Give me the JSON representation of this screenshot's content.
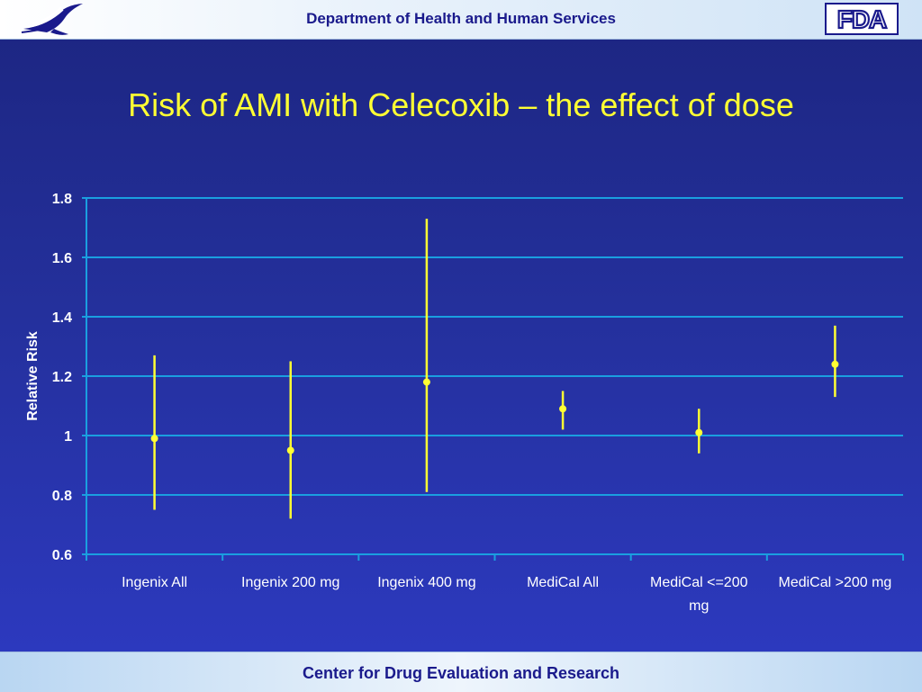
{
  "header": {
    "department": "Department of Health and Human Services",
    "hhs_logo_icon": "hhs-eagle-icon",
    "fda_logo_text": "FDA"
  },
  "slide": {
    "title": "Risk of AMI with Celecoxib – the effect of dose"
  },
  "footer": {
    "center": "Center for Drug Evaluation and Research"
  },
  "colors": {
    "background": "#2430a0",
    "accent": "#ffff33",
    "gridline": "#1a9fe0",
    "header_text": "#1a1a8c"
  },
  "chart_data": {
    "type": "scatter",
    "subtype": "point-estimate with confidence intervals",
    "ylabel": "Relative Risk",
    "xlabel": "",
    "ylim": [
      0.6,
      1.8
    ],
    "yticks": [
      "0.6",
      "0.8",
      "1",
      "1.2",
      "1.4",
      "1.6",
      "1.8"
    ],
    "grid": true,
    "categories": [
      "Ingenix All",
      "Ingenix 200 mg",
      "Ingenix 400 mg",
      "MediCal All",
      "MediCal <=200 mg",
      "MediCal >200 mg"
    ],
    "values": [
      0.99,
      0.95,
      1.18,
      1.09,
      1.01,
      1.24
    ],
    "ci_low": [
      0.75,
      0.72,
      0.81,
      1.02,
      0.94,
      1.13
    ],
    "ci_high": [
      1.27,
      1.25,
      1.73,
      1.15,
      1.09,
      1.37
    ],
    "marker_color": "#ffff33"
  }
}
